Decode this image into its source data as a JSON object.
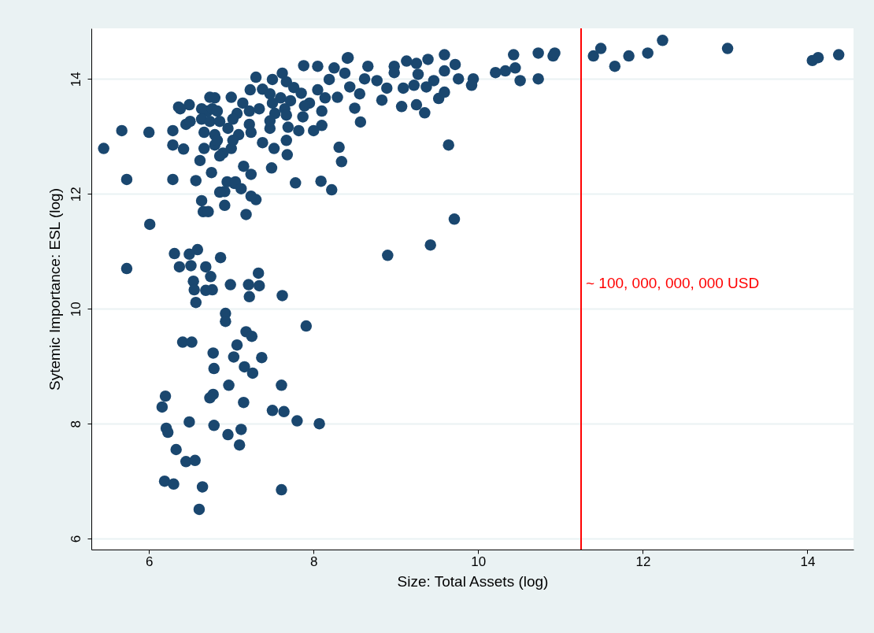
{
  "chart_data": {
    "type": "scatter",
    "xlabel": "Size: Total Assets (log)",
    "ylabel": "Sytemic Importance: ESL (log)",
    "color": "#1a476f",
    "marker": "circle",
    "grid": "y",
    "xlim": [
      5.3,
      14.56
    ],
    "ylim": [
      5.81,
      14.88
    ],
    "xticks": [
      6,
      8,
      10,
      12,
      14
    ],
    "yticks": [
      6,
      8,
      10,
      12,
      14
    ],
    "ref_lines": [
      {
        "axis": "x",
        "value": 11.25,
        "label": "~ 100, 000, 000, 000 USD",
        "color": "#ff0000"
      }
    ],
    "x": [
      5.45,
      5.67,
      5.73,
      5.73,
      6.0,
      6.01,
      6.29,
      6.29,
      6.29,
      6.31,
      6.36,
      6.45,
      6.49,
      6.42,
      6.57,
      6.64,
      6.66,
      6.72,
      6.59,
      6.49,
      6.37,
      6.51,
      6.69,
      6.75,
      6.87,
      6.54,
      6.55,
      6.57,
      6.77,
      6.69,
      6.99,
      7.21,
      7.33,
      7.34,
      7.22,
      7.62,
      7.91,
      6.41,
      6.52,
      6.93,
      6.93,
      7.18,
      7.25,
      6.78,
      7.07,
      7.37,
      7.03,
      6.79,
      7.16,
      7.26,
      6.97,
      7.61,
      6.2,
      6.16,
      6.78,
      6.74,
      7.15,
      7.5,
      7.64,
      6.21,
      6.23,
      6.49,
      6.79,
      6.96,
      7.12,
      7.8,
      8.07,
      6.33,
      6.45,
      6.56,
      7.1,
      6.19,
      6.3,
      6.65,
      7.61,
      6.61,
      8.09,
      8.22,
      8.9,
      9.42,
      9.71,
      9.64,
      8.31,
      8.34,
      8.57,
      7.78,
      7.3,
      7.18,
      7.04,
      6.92,
      7.24,
      11.4,
      11.49,
      11.66,
      11.83,
      12.06,
      12.24,
      13.03,
      14.06,
      14.13,
      14.38,
      10.91,
      10.93,
      10.73,
      10.73,
      10.43,
      10.45,
      10.51,
      10.33,
      10.21,
      9.94,
      9.92,
      9.76,
      9.72,
      9.59,
      9.59,
      9.52,
      9.59,
      9.39,
      9.25,
      9.13,
      9.27,
      9.46,
      9.37,
      9.35,
      9.22,
      9.09,
      9.25,
      9.07,
      8.98,
      8.98,
      8.83,
      8.5,
      8.66,
      8.62,
      8.77,
      8.89,
      8.56,
      8.42,
      8.44,
      6.5,
      6.38,
      6.62,
      6.76,
      6.86,
      6.95,
      7.05,
      7.12,
      7.15,
      7.24,
      6.92,
      7.38,
      7.49,
      7.52,
      7.68,
      7.67,
      8.1,
      8.1,
      8.0,
      7.82,
      7.87,
      7.69,
      7.47,
      8.41,
      7.88,
      8.05,
      8.25,
      8.19,
      8.38,
      7.3,
      7.5,
      7.62,
      7.67,
      7.76,
      7.85,
      7.95,
      8.05,
      8.14,
      8.29,
      7.38,
      7.23,
      7.47,
      7.6,
      7.72,
      7.5,
      7.65,
      7.53,
      7.67,
      7.89,
      7.47,
      6.74,
      6.8,
      7.0,
      6.64,
      6.71,
      6.77,
      6.83,
      7.14,
      7.07,
      7.22,
      7.34,
      6.64,
      6.74,
      6.86,
      7.02,
      7.22,
      6.67,
      6.8,
      6.96,
      7.09,
      7.24,
      6.67,
      6.8,
      6.9,
      7.0,
      6.86,
      7.02,
      6.83
    ],
    "values": [
      12.79,
      13.1,
      12.25,
      10.7,
      13.07,
      11.47,
      13.1,
      12.85,
      12.25,
      10.96,
      13.51,
      13.21,
      13.55,
      12.78,
      12.23,
      11.88,
      11.69,
      11.69,
      11.03,
      10.95,
      10.73,
      10.75,
      10.73,
      10.56,
      10.89,
      10.48,
      10.33,
      10.11,
      10.33,
      10.32,
      10.42,
      10.42,
      10.62,
      10.4,
      10.21,
      10.23,
      9.7,
      9.42,
      9.42,
      9.92,
      9.78,
      9.6,
      9.52,
      9.23,
      9.37,
      9.15,
      9.16,
      8.96,
      8.99,
      8.88,
      8.67,
      8.67,
      8.48,
      8.29,
      8.51,
      8.45,
      8.37,
      8.23,
      8.21,
      7.92,
      7.85,
      8.03,
      7.97,
      7.81,
      7.9,
      8.05,
      8.0,
      7.55,
      7.34,
      7.36,
      7.63,
      7.0,
      6.95,
      6.9,
      6.85,
      6.51,
      12.22,
      12.07,
      10.93,
      11.11,
      11.56,
      12.85,
      12.81,
      12.56,
      13.25,
      12.19,
      11.9,
      11.64,
      12.18,
      12.04,
      11.96,
      14.4,
      14.53,
      14.22,
      14.4,
      14.45,
      14.67,
      14.53,
      14.32,
      14.37,
      14.42,
      14.4,
      14.45,
      14.45,
      14.0,
      14.42,
      14.19,
      13.97,
      14.14,
      14.11,
      14.0,
      13.89,
      14.0,
      14.25,
      14.42,
      14.14,
      13.66,
      13.77,
      14.34,
      14.27,
      14.31,
      14.08,
      13.97,
      13.86,
      13.41,
      13.89,
      13.84,
      13.55,
      13.52,
      14.22,
      14.11,
      13.63,
      13.49,
      14.22,
      14.0,
      13.97,
      13.84,
      13.74,
      14.37,
      13.86,
      13.26,
      13.48,
      12.58,
      12.37,
      12.03,
      12.21,
      12.21,
      12.09,
      12.48,
      12.34,
      11.8,
      12.89,
      12.45,
      12.79,
      12.68,
      12.93,
      13.19,
      13.44,
      13.1,
      13.1,
      13.34,
      13.16,
      13.14,
      14.36,
      14.23,
      14.22,
      14.19,
      13.99,
      14.1,
      14.03,
      13.99,
      14.1,
      13.95,
      13.85,
      13.75,
      13.58,
      13.81,
      13.67,
      13.68,
      13.82,
      13.81,
      13.74,
      13.67,
      13.62,
      13.58,
      13.48,
      13.4,
      13.37,
      13.53,
      13.27,
      13.68,
      13.67,
      13.68,
      13.48,
      13.44,
      13.48,
      13.44,
      13.58,
      13.4,
      13.44,
      13.48,
      13.3,
      13.26,
      13.26,
      13.3,
      13.21,
      13.07,
      13.03,
      13.14,
      13.03,
      13.07,
      12.79,
      12.85,
      12.71,
      12.79,
      12.66,
      12.93,
      12.93
    ]
  }
}
